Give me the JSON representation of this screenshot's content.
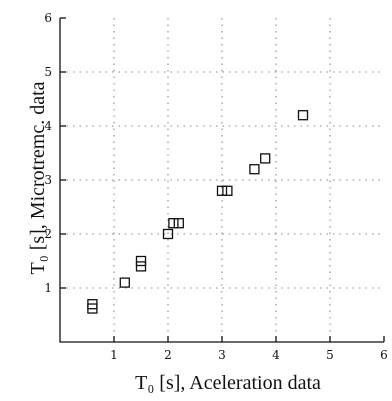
{
  "chart_data": {
    "type": "scatter",
    "xlabel": "T₀ [s], Aceleration data",
    "ylabel": "T₀ [s], Microtremc. data",
    "xlim": [
      0,
      6
    ],
    "ylim": [
      0,
      6
    ],
    "xticks": [
      "1",
      "2",
      "3",
      "4",
      "5",
      "6"
    ],
    "yticks": [
      "1",
      "2",
      "3",
      "4",
      "5",
      "6"
    ],
    "grid": "dotted",
    "marker": "square",
    "points": [
      {
        "x": 0.6,
        "y": 0.62
      },
      {
        "x": 0.6,
        "y": 0.7
      },
      {
        "x": 1.2,
        "y": 1.1
      },
      {
        "x": 1.5,
        "y": 1.4
      },
      {
        "x": 1.5,
        "y": 1.5
      },
      {
        "x": 2.0,
        "y": 2.0
      },
      {
        "x": 2.1,
        "y": 2.2
      },
      {
        "x": 2.2,
        "y": 2.2
      },
      {
        "x": 3.0,
        "y": 2.8
      },
      {
        "x": 3.1,
        "y": 2.8
      },
      {
        "x": 3.6,
        "y": 3.2
      },
      {
        "x": 3.8,
        "y": 3.4
      },
      {
        "x": 4.5,
        "y": 4.2
      }
    ]
  }
}
